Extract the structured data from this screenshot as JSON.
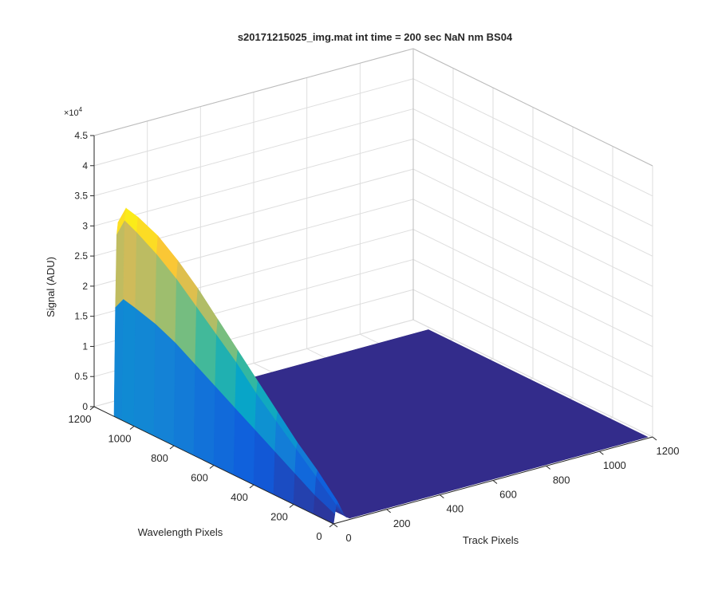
{
  "chart_data": {
    "type": "surface",
    "title": "s20171215025_img.mat int time = 200 sec  NaN nm BS04",
    "zlabel": "Signal (ADU)",
    "xlabel": "Track Pixels",
    "ylabel": "Wavelength Pixels",
    "z_multiplier_label": "×10",
    "z_multiplier_exponent": "4",
    "xlim": [
      0,
      1200
    ],
    "ylim": [
      0,
      1200
    ],
    "zlim": [
      0,
      45000
    ],
    "x_ticks": [
      "0",
      "200",
      "400",
      "600",
      "800",
      "1000",
      "1200"
    ],
    "y_ticks": [
      "0",
      "200",
      "400",
      "600",
      "800",
      "1000",
      "1200"
    ],
    "z_ticks": [
      "0",
      "0.5",
      "1",
      "1.5",
      "2",
      "2.5",
      "3",
      "3.5",
      "4",
      "4.5"
    ],
    "grid": true,
    "colormap": [
      "#352a87",
      "#0f5cdd",
      "#1481d6",
      "#06a4ca",
      "#2eb7a4",
      "#87bf77",
      "#d1bb59",
      "#fec832",
      "#f9fb0e"
    ],
    "data": {
      "track_pixels": [
        0,
        5,
        10,
        15,
        20,
        25,
        30,
        35,
        40,
        50,
        60
      ],
      "wavelength_pixels": [
        0,
        100,
        200,
        300,
        400,
        500,
        600,
        700,
        800,
        900,
        1000,
        1060,
        1100
      ],
      "signal": [
        [
          0,
          1500,
          3000,
          3500,
          3000,
          2500,
          2000,
          1500,
          1000,
          500,
          300
        ],
        [
          0,
          3000,
          6000,
          7000,
          6000,
          5000,
          4000,
          3000,
          2000,
          1000,
          500
        ],
        [
          0,
          5000,
          9000,
          10000,
          9000,
          7500,
          6000,
          4500,
          3000,
          1500,
          700
        ],
        [
          0,
          7000,
          12000,
          13500,
          12000,
          10000,
          8000,
          6000,
          4000,
          2000,
          900
        ],
        [
          0,
          9000,
          15000,
          17000,
          15000,
          12500,
          10000,
          7500,
          5000,
          2500,
          1100
        ],
        [
          0,
          11000,
          18500,
          20500,
          18500,
          15500,
          12500,
          9500,
          6500,
          3200,
          1300
        ],
        [
          0,
          13000,
          21500,
          24000,
          21500,
          18000,
          14500,
          11000,
          7500,
          3700,
          1500
        ],
        [
          0,
          15000,
          24500,
          27500,
          25000,
          21000,
          17000,
          13000,
          9000,
          4300,
          1700
        ],
        [
          0,
          17000,
          27500,
          30500,
          28000,
          23500,
          19000,
          14500,
          10000,
          4800,
          1900
        ],
        [
          0,
          18500,
          30000,
          33000,
          30500,
          25500,
          20500,
          15500,
          10500,
          5100,
          2000
        ],
        [
          0,
          19500,
          32000,
          34500,
          31500,
          26500,
          21500,
          16000,
          11000,
          5300,
          2100
        ],
        [
          0,
          20000,
          33000,
          35000,
          32000,
          27000,
          22000,
          16500,
          11000,
          5400,
          2100
        ],
        [
          0,
          18000,
          30000,
          32000,
          29000,
          24000,
          19500,
          14500,
          10000,
          4800,
          1900
        ]
      ],
      "background_signal": 200,
      "background_extent": {
        "track_pixels": [
          60,
          1200
        ],
        "wavelength_pixels": [
          0,
          1100
        ]
      }
    }
  }
}
